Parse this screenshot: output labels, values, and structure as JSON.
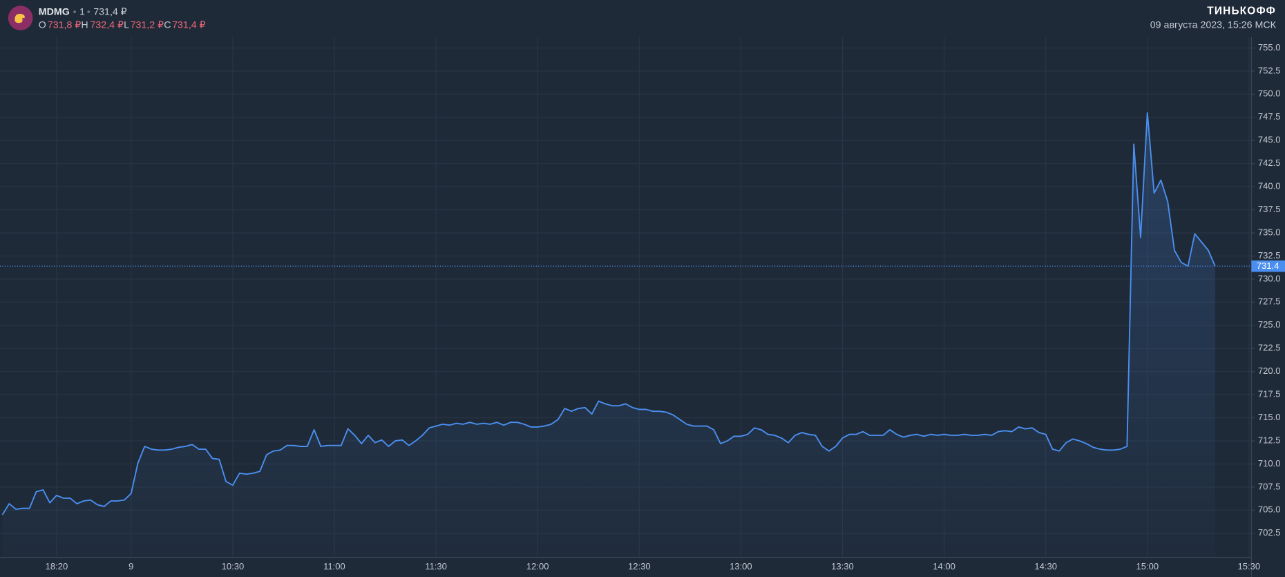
{
  "header": {
    "ticker": "MDMG",
    "interval": "1",
    "price": "731,4 ₽",
    "ohlc": [
      {
        "label": "O",
        "value": "731,8 ₽"
      },
      {
        "label": "H",
        "value": "732,4 ₽"
      },
      {
        "label": "L",
        "value": "731,2 ₽"
      },
      {
        "label": "C",
        "value": "731,4 ₽"
      }
    ],
    "brand": "ТИНЬКОФФ",
    "timestamp": "09 августа 2023, 15:26 МСК"
  },
  "chart_data": {
    "type": "line",
    "categories": [
      null,
      null,
      null,
      null,
      null,
      null,
      null,
      null,
      "18:20",
      null,
      null,
      null,
      null,
      null,
      null,
      null,
      null,
      null,
      null,
      "9",
      null,
      null,
      null,
      null,
      null,
      null,
      null,
      null,
      null,
      null,
      null,
      null,
      null,
      null,
      "10:30",
      null,
      null,
      null,
      null,
      null,
      null,
      null,
      null,
      null,
      null,
      null,
      null,
      null,
      null,
      "11:00",
      null,
      null,
      null,
      null,
      null,
      null,
      null,
      null,
      null,
      null,
      null,
      null,
      null,
      null,
      "11:30",
      null,
      null,
      null,
      null,
      null,
      null,
      null,
      null,
      null,
      null,
      null,
      null,
      null,
      null,
      "12:00",
      null,
      null,
      null,
      null,
      null,
      null,
      null,
      null,
      null,
      null,
      null,
      null,
      null,
      null,
      "12:30",
      null,
      null,
      null,
      null,
      null,
      null,
      null,
      null,
      null,
      null,
      null,
      null,
      null,
      null,
      "13:00",
      null,
      null,
      null,
      null,
      null,
      null,
      null,
      null,
      null,
      null,
      null,
      null,
      null,
      null,
      "13:30",
      null,
      null,
      null,
      null,
      null,
      null,
      null,
      null,
      null,
      null,
      null,
      null,
      null,
      null,
      "14:00",
      null,
      null,
      null,
      null,
      null,
      null,
      null,
      null,
      null,
      null,
      null,
      null,
      null,
      null,
      "14:30",
      null,
      null,
      null,
      null,
      null,
      null,
      null,
      null,
      null,
      null,
      null,
      null,
      null,
      null,
      "15:00",
      null,
      null,
      null,
      null,
      null,
      null,
      null,
      null,
      null,
      null,
      null,
      null,
      null,
      null,
      "15:30"
    ],
    "series": [
      {
        "name": "MDMG",
        "color": "#4a8ff0",
        "values": [
          704.5,
          705.7,
          705.1,
          705.2,
          705.2,
          707.0,
          707.2,
          705.8,
          706.6,
          706.3,
          706.3,
          705.7,
          706.0,
          706.1,
          705.6,
          705.4,
          706.0,
          706.0,
          706.1,
          706.8,
          710.1,
          711.9,
          711.6,
          711.5,
          711.5,
          711.6,
          711.8,
          711.9,
          712.1,
          711.6,
          711.6,
          710.6,
          710.5,
          708.1,
          707.7,
          709.0,
          708.9,
          709.0,
          709.2,
          711.0,
          711.4,
          711.5,
          712.0,
          712.0,
          711.9,
          711.9,
          713.7,
          711.9,
          712.0,
          712.0,
          712.0,
          713.8,
          713.1,
          712.2,
          713.1,
          712.3,
          712.6,
          711.9,
          712.5,
          712.6,
          712.0,
          712.5,
          713.1,
          713.9,
          714.1,
          714.3,
          714.2,
          714.4,
          714.3,
          714.5,
          714.3,
          714.4,
          714.3,
          714.5,
          714.2,
          714.5,
          714.5,
          714.3,
          714.0,
          714.0,
          714.1,
          714.3,
          714.8,
          716.0,
          715.7,
          716.0,
          716.1,
          715.4,
          716.8,
          716.5,
          716.3,
          716.3,
          716.5,
          716.1,
          715.9,
          715.9,
          715.7,
          715.7,
          715.6,
          715.3,
          714.8,
          714.3,
          714.1,
          714.1,
          714.1,
          713.7,
          712.2,
          712.5,
          713.0,
          713.0,
          713.2,
          713.9,
          713.7,
          713.2,
          713.1,
          712.8,
          712.3,
          713.1,
          713.4,
          713.2,
          713.1,
          711.9,
          711.4,
          711.9,
          712.8,
          713.2,
          713.2,
          713.5,
          713.1,
          713.1,
          713.1,
          713.7,
          713.2,
          712.9,
          713.1,
          713.2,
          713.0,
          713.2,
          713.1,
          713.2,
          713.1,
          713.1,
          713.2,
          713.1,
          713.1,
          713.2,
          713.1,
          713.5,
          713.6,
          713.5,
          714.0,
          713.8,
          713.9,
          713.4,
          713.2,
          711.6,
          711.4,
          712.3,
          712.7,
          712.5,
          712.2,
          711.8,
          711.6,
          711.5,
          711.5,
          711.6,
          711.9,
          744.6,
          734.5,
          748.0,
          739.3,
          740.7,
          738.4,
          733.1,
          731.8,
          731.4,
          734.9,
          734.0,
          733.1,
          731.4,
          null,
          null,
          null,
          null,
          null
        ]
      }
    ],
    "last_value": 731.4,
    "ylim": [
      699.9,
      756.2
    ],
    "yticks": [
      702.5,
      {
        "value": 705,
        "label": "705.0"
      },
      707.5,
      {
        "value": 710,
        "label": "710.0"
      },
      712.5,
      {
        "value": 715,
        "label": "715.0"
      },
      717.5,
      {
        "value": 720,
        "label": "720.0"
      },
      722.5,
      {
        "value": 725,
        "label": "725.0"
      },
      727.5,
      {
        "value": 730,
        "label": "730.0"
      },
      732.5,
      {
        "value": 735,
        "label": "735.0"
      },
      737.5,
      {
        "value": 740,
        "label": "740.0"
      },
      742.5,
      {
        "value": 745,
        "label": "745.0"
      },
      747.5,
      {
        "value": 750,
        "label": "750.0"
      },
      752.5,
      {
        "value": 755,
        "label": "755.0"
      }
    ],
    "grid": true
  }
}
